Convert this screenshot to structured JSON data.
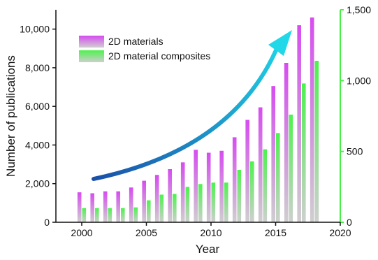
{
  "chart_data": {
    "type": "bar",
    "xlabel": "Year",
    "ylabel": "Number of publications",
    "x": [
      2000,
      2001,
      2002,
      2003,
      2004,
      2005,
      2006,
      2007,
      2008,
      2009,
      2010,
      2011,
      2012,
      2013,
      2014,
      2015,
      2016,
      2017,
      2018
    ],
    "xlim": [
      1998,
      2020
    ],
    "xticks": [
      "2000",
      "2005",
      "2010",
      "2015",
      "2020"
    ],
    "ylim": [
      0,
      11000
    ],
    "yticks": [
      "0",
      "2,000",
      "4,000",
      "6,000",
      "8,000",
      "10,000"
    ],
    "y2lim": [
      0,
      1500
    ],
    "y2ticks": [
      "0",
      "500",
      "1,000",
      "1,500"
    ],
    "grid": false,
    "legend_position": "top-left",
    "series": [
      {
        "name": "2D materials",
        "axis": "left",
        "color": "#d64cf0",
        "values": [
          1550,
          1500,
          1600,
          1600,
          1800,
          2150,
          2450,
          2750,
          3100,
          3750,
          3600,
          3700,
          4400,
          5300,
          5950,
          7050,
          8250,
          10200,
          10600
        ]
      },
      {
        "name": "2D material composites",
        "axis": "right",
        "color": "#4df24d",
        "values": [
          100,
          100,
          100,
          100,
          105,
          155,
          195,
          200,
          250,
          270,
          280,
          280,
          370,
          430,
          515,
          630,
          760,
          980,
          1140
        ]
      }
    ],
    "axis_colors": {
      "left": "#111111",
      "right": "#44ee44"
    },
    "annotation": {
      "type": "trend-arrow",
      "color_start": "#1a4fa8",
      "color_end": "#20d8e8"
    }
  }
}
